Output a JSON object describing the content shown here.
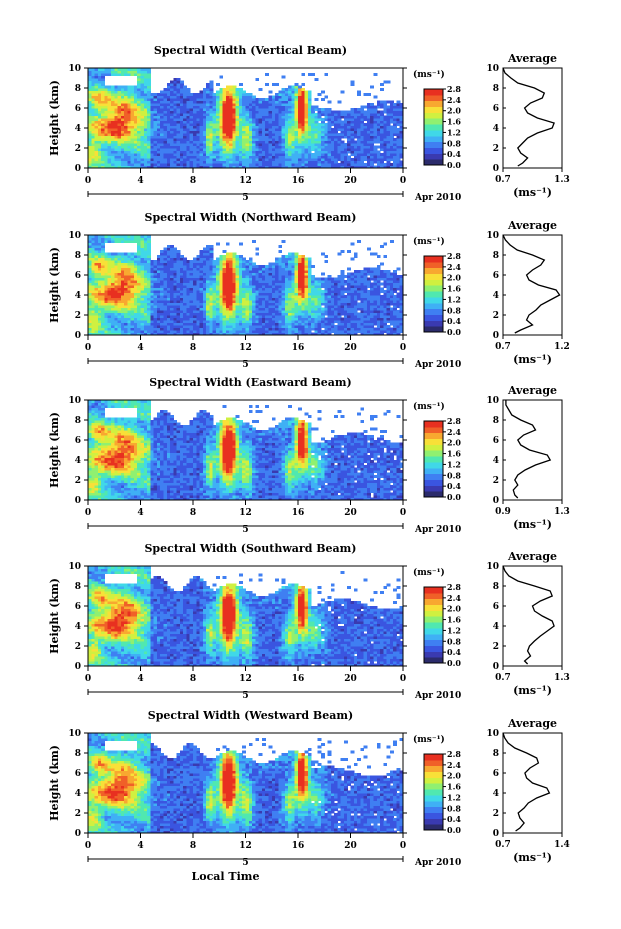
{
  "figure": {
    "xlabel": "Local Time",
    "date_label": "Apr 2010",
    "date_tick": "5",
    "colorbar_unit": "(ms⁻¹)",
    "avg_title": "Average",
    "avg_unit": "(ms⁻¹)"
  },
  "colors": {
    "colormap": [
      "#2b2b6b",
      "#3a3ab0",
      "#3a55e0",
      "#3f7ff2",
      "#3fb0f5",
      "#40d8e8",
      "#50e8b0",
      "#90f070",
      "#d0f040",
      "#f8e038",
      "#f8a830",
      "#f06028",
      "#e83020"
    ]
  },
  "chart_data": [
    {
      "type": "heatmap",
      "title": "Spectral Width (Vertical Beam)",
      "ylabel": "Height (km)",
      "x_ticks": [
        "0",
        "4",
        "8",
        "12",
        "16",
        "20",
        "0"
      ],
      "y_ticks": [
        "0",
        "2",
        "4",
        "6",
        "8",
        "10"
      ],
      "xlim": [
        0,
        24
      ],
      "ylim": [
        0,
        10
      ],
      "colorbar_ticks": [
        "0.0",
        "0.4",
        "0.8",
        "1.2",
        "1.6",
        "2.0",
        "2.4",
        "2.8"
      ],
      "clim": [
        0,
        2.8
      ],
      "average_profile": {
        "x_ticks": [
          "0.7",
          "1.3"
        ],
        "xlim": [
          0.7,
          1.3
        ],
        "height_km": [
          0.2,
          0.5,
          1,
          1.5,
          2,
          2.5,
          3,
          3.5,
          4,
          4.5,
          5,
          5.5,
          6,
          6.5,
          7,
          7.5,
          8,
          8.5,
          9,
          9.5,
          10
        ],
        "width_ms": [
          0.85,
          0.9,
          0.95,
          0.88,
          0.85,
          0.9,
          0.95,
          1.05,
          1.2,
          1.22,
          1.05,
          0.95,
          0.92,
          0.98,
          1.1,
          1.12,
          1.02,
          0.85,
          0.78,
          0.72,
          0.7
        ]
      }
    },
    {
      "type": "heatmap",
      "title": "Spectral Width (Northward Beam)",
      "ylabel": "Height (km)",
      "x_ticks": [
        "0",
        "4",
        "8",
        "12",
        "16",
        "20",
        "0"
      ],
      "y_ticks": [
        "0",
        "2",
        "4",
        "6",
        "8",
        "10"
      ],
      "xlim": [
        0,
        24
      ],
      "ylim": [
        0,
        10
      ],
      "colorbar_ticks": [
        "0.0",
        "0.4",
        "0.8",
        "1.2",
        "1.6",
        "2.0",
        "2.4",
        "2.8"
      ],
      "clim": [
        0,
        2.8
      ],
      "average_profile": {
        "x_ticks": [
          "0.7",
          "1.2"
        ],
        "xlim": [
          0.7,
          1.2
        ],
        "height_km": [
          0.2,
          0.5,
          1,
          1.5,
          2,
          2.5,
          3,
          3.5,
          4,
          4.5,
          5,
          5.5,
          6,
          6.5,
          7,
          7.5,
          8,
          8.5,
          9,
          9.5,
          10
        ],
        "width_ms": [
          0.8,
          0.85,
          0.95,
          0.9,
          0.92,
          0.98,
          1.02,
          1.1,
          1.18,
          1.15,
          1.0,
          0.92,
          0.9,
          0.95,
          1.02,
          1.05,
          0.95,
          0.82,
          0.76,
          0.72,
          0.7
        ]
      }
    },
    {
      "type": "heatmap",
      "title": "Spectral Width (Eastward Beam)",
      "ylabel": "Height (km)",
      "x_ticks": [
        "0",
        "4",
        "8",
        "12",
        "16",
        "20",
        "0"
      ],
      "y_ticks": [
        "0",
        "2",
        "4",
        "6",
        "8",
        "10"
      ],
      "xlim": [
        0,
        24
      ],
      "ylim": [
        0,
        10
      ],
      "colorbar_ticks": [
        "0.0",
        "0.4",
        "0.8",
        "1.2",
        "1.6",
        "2.0",
        "2.4",
        "2.8"
      ],
      "clim": [
        0,
        2.8
      ],
      "average_profile": {
        "x_ticks": [
          "0.9",
          "1.3"
        ],
        "xlim": [
          0.9,
          1.3
        ],
        "height_km": [
          0.2,
          0.5,
          1,
          1.5,
          2,
          2.5,
          3,
          3.5,
          4,
          4.5,
          5,
          5.5,
          6,
          6.5,
          7,
          7.5,
          8,
          8.5,
          9,
          9.5,
          10
        ],
        "width_ms": [
          1.0,
          0.98,
          0.97,
          1.0,
          0.98,
          1.0,
          1.05,
          1.12,
          1.22,
          1.2,
          1.08,
          1.02,
          1.0,
          1.04,
          1.12,
          1.1,
          1.02,
          0.96,
          0.94,
          0.92,
          0.92
        ]
      }
    },
    {
      "type": "heatmap",
      "title": "Spectral Width (Southward Beam)",
      "ylabel": "Height (km)",
      "x_ticks": [
        "0",
        "4",
        "8",
        "12",
        "16",
        "20",
        "0"
      ],
      "y_ticks": [
        "0",
        "2",
        "4",
        "6",
        "8",
        "10"
      ],
      "xlim": [
        0,
        24
      ],
      "ylim": [
        0,
        10
      ],
      "colorbar_ticks": [
        "0.0",
        "0.4",
        "0.8",
        "1.2",
        "1.6",
        "2.0",
        "2.4",
        "2.8"
      ],
      "clim": [
        0,
        2.8
      ],
      "average_profile": {
        "x_ticks": [
          "0.7",
          "1.3"
        ],
        "xlim": [
          0.7,
          1.3
        ],
        "height_km": [
          0.2,
          0.5,
          1,
          1.5,
          2,
          2.5,
          3,
          3.5,
          4,
          4.5,
          5,
          5.5,
          6,
          6.5,
          7,
          7.5,
          8,
          8.5,
          9,
          9.5,
          10
        ],
        "width_ms": [
          0.95,
          0.92,
          0.98,
          0.95,
          0.97,
          1.02,
          1.08,
          1.15,
          1.22,
          1.2,
          1.1,
          1.02,
          1.0,
          1.08,
          1.2,
          1.18,
          1.02,
          0.85,
          0.76,
          0.72,
          0.7
        ]
      }
    },
    {
      "type": "heatmap",
      "title": "Spectral Width (Westward Beam)",
      "ylabel": "Height (km)",
      "x_ticks": [
        "0",
        "4",
        "8",
        "12",
        "16",
        "20",
        "0"
      ],
      "y_ticks": [
        "0",
        "2",
        "4",
        "6",
        "8",
        "10"
      ],
      "xlim": [
        0,
        24
      ],
      "ylim": [
        0,
        10
      ],
      "colorbar_ticks": [
        "0.0",
        "0.4",
        "0.8",
        "1.2",
        "1.6",
        "2.0",
        "2.4",
        "2.8"
      ],
      "clim": [
        0,
        2.8
      ],
      "average_profile": {
        "x_ticks": [
          "0.7",
          "1.4"
        ],
        "xlim": [
          0.7,
          1.4
        ],
        "height_km": [
          0.2,
          0.5,
          1,
          1.5,
          2,
          2.5,
          3,
          3.5,
          4,
          4.5,
          5,
          5.5,
          6,
          6.5,
          7,
          7.5,
          8,
          8.5,
          9,
          9.5,
          10
        ],
        "width_ms": [
          0.85,
          0.9,
          0.95,
          0.9,
          0.88,
          0.95,
          1.0,
          1.1,
          1.25,
          1.22,
          1.05,
          0.98,
          0.96,
          1.02,
          1.12,
          1.1,
          0.98,
          0.84,
          0.76,
          0.72,
          0.7
        ]
      }
    }
  ]
}
